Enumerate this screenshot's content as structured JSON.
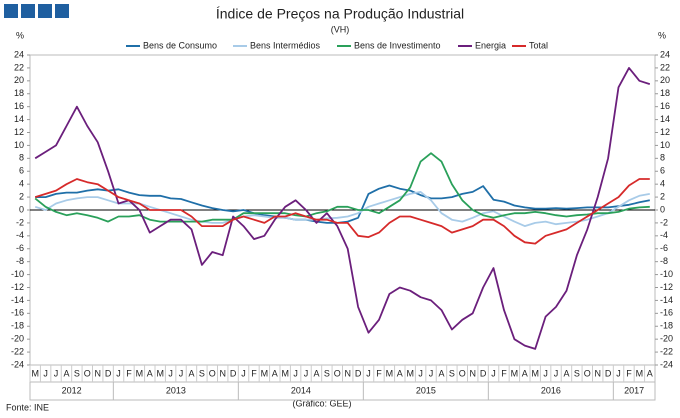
{
  "chart_data": {
    "type": "line",
    "title": "Índice de Preços na Produção Industrial",
    "subtitle": "(VH)",
    "y_unit_left": "%",
    "y_unit_right": "%",
    "source": "Fonte: INE",
    "credit": "(Gráfico: GEE)",
    "categories": [
      "M",
      "J",
      "J",
      "A",
      "S",
      "O",
      "N",
      "D",
      "J",
      "F",
      "M",
      "A",
      "M",
      "J",
      "J",
      "A",
      "S",
      "O",
      "N",
      "D",
      "J",
      "F",
      "M",
      "A",
      "M",
      "J",
      "J",
      "A",
      "S",
      "O",
      "N",
      "D",
      "J",
      "F",
      "M",
      "A",
      "M",
      "J",
      "J",
      "A",
      "S",
      "O",
      "N",
      "D",
      "J",
      "F",
      "M",
      "A",
      "M",
      "J",
      "J",
      "A",
      "S",
      "O",
      "N",
      "D",
      "J",
      "F",
      "M",
      "A"
    ],
    "years": [
      "2012",
      "2013",
      "2014",
      "2015",
      "2016",
      "2017"
    ],
    "ylim": [
      -24,
      24
    ],
    "yticks": [
      -24,
      -22,
      -20,
      -18,
      -16,
      -14,
      -12,
      -10,
      -8,
      -6,
      -4,
      -2,
      0,
      2,
      4,
      6,
      8,
      10,
      12,
      14,
      16,
      18,
      20,
      22,
      24
    ],
    "grid": false,
    "legend": "top",
    "series": [
      {
        "name": "Bens de Consumo",
        "color": "#1f6fa8",
        "values": [
          2,
          2,
          2.5,
          2.7,
          2.7,
          3,
          3.2,
          3,
          3.2,
          2.7,
          2.3,
          2.2,
          2.2,
          1.8,
          1.7,
          1.2,
          0.7,
          0.3,
          0,
          -0.2,
          0,
          -0.5,
          -0.8,
          -1,
          -1.2,
          -1.5,
          -1.5,
          -1.8,
          -2,
          -2,
          -1.8,
          -1.2,
          2.5,
          3.3,
          3.8,
          3.3,
          3,
          2.3,
          1.8,
          1.8,
          2,
          2.5,
          2.8,
          3.7,
          1.6,
          1.3,
          0.7,
          0.4,
          0.2,
          0.2,
          0.3,
          0.2,
          0.3,
          0.4,
          0.4,
          0.4,
          0.6,
          0.8,
          1.2,
          1.5
        ]
      },
      {
        "name": "Bens Intermédios",
        "color": "#a8cbe8",
        "values": [
          0.5,
          0,
          1,
          1.5,
          1.8,
          2,
          2,
          1.5,
          1,
          1,
          1,
          0.5,
          0,
          -0.5,
          -1,
          -1.5,
          -1.8,
          -2,
          -2,
          -1.5,
          -1,
          -0.8,
          -1,
          -1.2,
          -1.2,
          -1.5,
          -1.5,
          -1.5,
          -1.3,
          -1.2,
          -1,
          -0.5,
          0.5,
          1,
          1.5,
          2,
          2.5,
          2.8,
          1.5,
          -0.5,
          -1.5,
          -1.8,
          -1.2,
          -0.5,
          -0.2,
          -1,
          -1.8,
          -2.5,
          -2,
          -1.8,
          -2.2,
          -2,
          -1.8,
          -1.5,
          -1,
          -0.5,
          0.5,
          1.5,
          2.2,
          2.5
        ]
      },
      {
        "name": "Bens de Investimento",
        "color": "#2aa05a",
        "values": [
          1.8,
          0.5,
          -0.3,
          -0.8,
          -0.5,
          -0.8,
          -1.2,
          -1.8,
          -1,
          -1,
          -0.8,
          -1.5,
          -1.8,
          -1.8,
          -1.8,
          -1.8,
          -1.8,
          -1.5,
          -1.5,
          -1.5,
          -0.5,
          -0.5,
          -0.5,
          -0.5,
          -0.5,
          -0.8,
          -1,
          -0.5,
          -0.2,
          0.5,
          0.5,
          0,
          0,
          -0.5,
          0.5,
          1.5,
          3.5,
          7.5,
          8.8,
          7.5,
          4,
          1.5,
          0,
          -0.8,
          -1.2,
          -0.8,
          -0.5,
          -0.5,
          -0.3,
          -0.5,
          -0.8,
          -1,
          -0.8,
          -0.7,
          -0.5,
          -0.5,
          -0.3,
          0.2,
          0.4,
          0.5
        ]
      },
      {
        "name": "Energia",
        "color": "#6b1f7c",
        "values": [
          8,
          9,
          10,
          13,
          16,
          13,
          10.5,
          6,
          1,
          1.5,
          0,
          -3.5,
          -2.5,
          -1.5,
          -1.5,
          -3,
          -8.5,
          -6.5,
          -7,
          -1,
          -2.5,
          -4.5,
          -4,
          -1.5,
          0.5,
          1.5,
          0,
          -2,
          -0.5,
          -2.5,
          -6,
          -15,
          -19,
          -17,
          -13,
          -12,
          -12.5,
          -13.5,
          -14,
          -15.5,
          -18.5,
          -17,
          -16,
          -12,
          -9,
          -15.5,
          -20,
          -21,
          -21.5,
          -16.5,
          -15,
          -12.5,
          -7,
          -3,
          2,
          8,
          19,
          22,
          20,
          19.5
        ]
      },
      {
        "name": "Total",
        "color": "#d62a2a",
        "values": [
          2,
          2.5,
          3,
          4,
          4.8,
          4.3,
          4,
          3,
          2,
          1.5,
          1,
          0,
          0,
          0,
          0,
          -1,
          -2.5,
          -2.5,
          -2.5,
          -1.5,
          -1,
          -1.5,
          -2,
          -1,
          -1,
          -0.5,
          -1,
          -1.5,
          -1.5,
          -2,
          -2,
          -4,
          -4.2,
          -3.5,
          -2,
          -1,
          -1,
          -1.5,
          -2,
          -2.5,
          -3.5,
          -3,
          -2.5,
          -1.5,
          -1.5,
          -2.5,
          -4,
          -5,
          -5.2,
          -4,
          -3.5,
          -3,
          -2,
          -1,
          0,
          1,
          2,
          3.8,
          4.8,
          4.8
        ]
      }
    ]
  }
}
